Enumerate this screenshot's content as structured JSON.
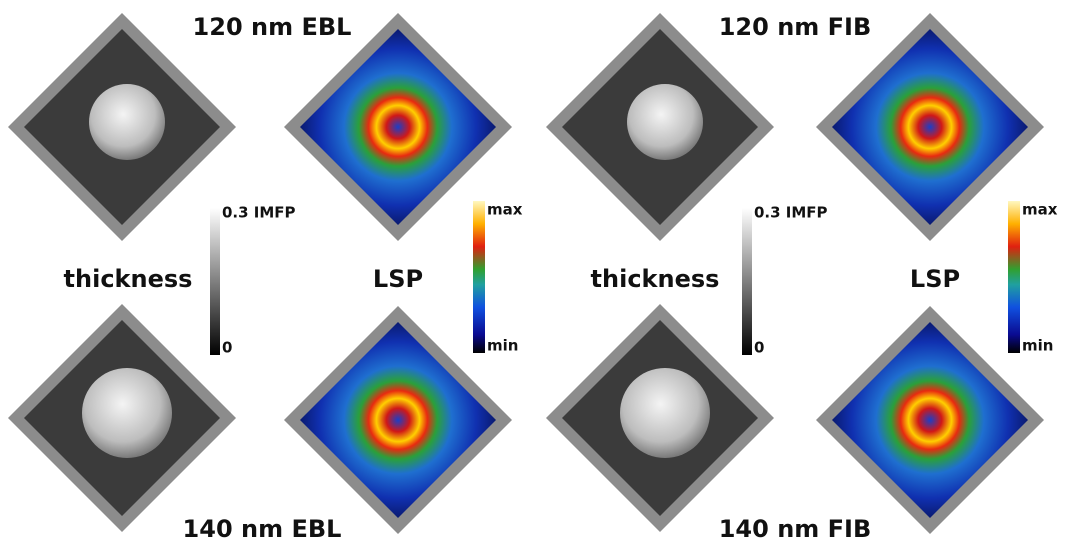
{
  "groups": [
    {
      "title_top": "120 nm EBL",
      "title_bottom": "140 nm EBL",
      "thickness_label": "thickness",
      "lsp_label": "LSP",
      "thickness_scale": {
        "max": "0.3 IMFP",
        "min": "0"
      },
      "lsp_scale": {
        "max": "max",
        "min": "min"
      }
    },
    {
      "title_top": "120 nm FIB",
      "title_bottom": "140 nm FIB",
      "thickness_label": "thickness",
      "lsp_label": "LSP",
      "thickness_scale": {
        "max": "0.3 IMFP",
        "min": "0"
      },
      "lsp_scale": {
        "max": "max",
        "min": "min"
      }
    }
  ]
}
